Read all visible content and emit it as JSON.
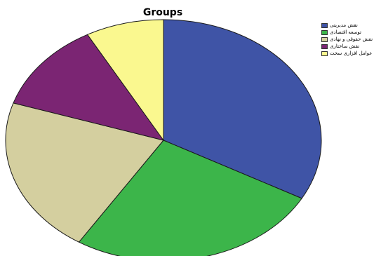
{
  "chart_data": {
    "type": "pie",
    "title": "Groups",
    "legend_position": "top-right",
    "slices": [
      {
        "label": "نقش مدیریتی",
        "value": 33,
        "color": "#3f54a6"
      },
      {
        "label": "توسعه اقتصادی",
        "value": 26,
        "color": "#3cb54a"
      },
      {
        "label": "نقش حقوقی و نهادی",
        "value": 21,
        "color": "#d4cf9f"
      },
      {
        "label": "نقش ساختاری",
        "value": 12,
        "color": "#7b2573"
      },
      {
        "label": "عوامل افزاری سخت",
        "value": 8,
        "color": "#faf88f"
      }
    ]
  }
}
